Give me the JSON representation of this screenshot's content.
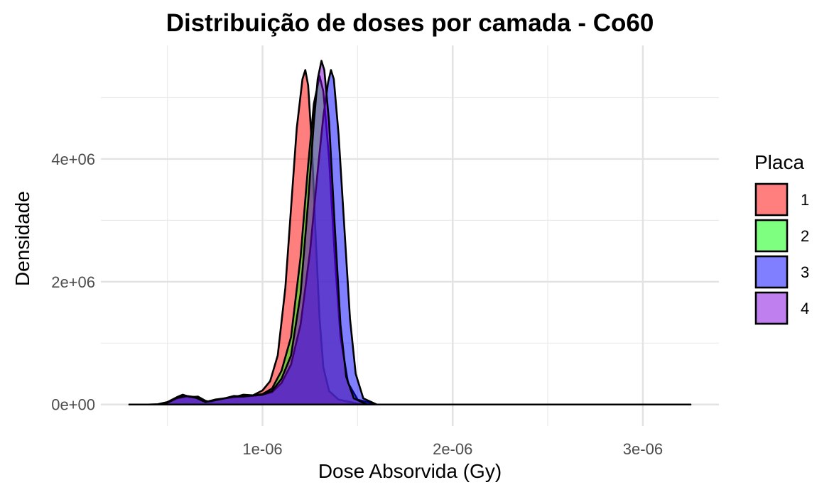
{
  "chart_data": {
    "type": "area",
    "subtype": "density",
    "title": "Distribuição de doses por camada - Co60",
    "xlabel": "Dose Absorvida (Gy)",
    "ylabel": "Densidade",
    "xlim": [
      1.5e-07,
      3.4e-06
    ],
    "ylim": [
      -350000.0,
      5850000.0
    ],
    "x_ticks": [
      {
        "value": 1e-06,
        "label": "1e-06"
      },
      {
        "value": 2e-06,
        "label": "2e-06"
      },
      {
        "value": 3e-06,
        "label": "3e-06"
      }
    ],
    "y_ticks": [
      {
        "value": 0,
        "label": "0e+00"
      },
      {
        "value": 2000000,
        "label": "2e+06"
      },
      {
        "value": 4000000,
        "label": "4e+06"
      }
    ],
    "x_minor_ticks": [
      5e-07,
      1.5e-06,
      2.5e-06
    ],
    "y_minor_ticks": [
      1000000,
      3000000,
      5000000
    ],
    "grid": true,
    "legend": {
      "title": "Placa",
      "position": "right"
    },
    "outline_color": "#000000",
    "fill_opacity": 0.5,
    "series": [
      {
        "name": "1",
        "color": "#FF0000",
        "points": [
          [
            3e-07,
            0
          ],
          [
            4e-07,
            0
          ],
          [
            4.5e-07,
            5000
          ],
          [
            5e-07,
            40000
          ],
          [
            5.5e-07,
            120000
          ],
          [
            5.8e-07,
            160000
          ],
          [
            6.2e-07,
            120000
          ],
          [
            6.6e-07,
            130000
          ],
          [
            7e-07,
            60000
          ],
          [
            7.3e-07,
            40000
          ],
          [
            7.6e-07,
            80000
          ],
          [
            8e-07,
            100000
          ],
          [
            8.5e-07,
            120000
          ],
          [
            9e-07,
            160000
          ],
          [
            9.5e-07,
            150000
          ],
          [
            1e-06,
            230000
          ],
          [
            1.04e-06,
            380000
          ],
          [
            1.08e-06,
            800000
          ],
          [
            1.12e-06,
            1900000
          ],
          [
            1.15e-06,
            3200000
          ],
          [
            1.18e-06,
            4500000
          ],
          [
            1.21e-06,
            5300000
          ],
          [
            1.225e-06,
            5450000
          ],
          [
            1.24e-06,
            5200000
          ],
          [
            1.26e-06,
            4200000
          ],
          [
            1.28e-06,
            2700000
          ],
          [
            1.3e-06,
            1400000
          ],
          [
            1.32e-06,
            600000
          ],
          [
            1.35e-06,
            220000
          ],
          [
            1.4e-06,
            80000
          ],
          [
            1.5e-06,
            15000
          ],
          [
            1.6e-06,
            0
          ],
          [
            2e-06,
            0
          ],
          [
            3.25e-06,
            0
          ]
        ]
      },
      {
        "name": "2",
        "color": "#00FF00",
        "points": [
          [
            3e-07,
            0
          ],
          [
            4.5e-07,
            0
          ],
          [
            5e-07,
            30000
          ],
          [
            5.5e-07,
            110000
          ],
          [
            6e-07,
            140000
          ],
          [
            6.5e-07,
            120000
          ],
          [
            7e-07,
            40000
          ],
          [
            7.5e-07,
            80000
          ],
          [
            8e-07,
            100000
          ],
          [
            8.5e-07,
            140000
          ],
          [
            9e-07,
            130000
          ],
          [
            9.5e-07,
            150000
          ],
          [
            1e-06,
            170000
          ],
          [
            1.05e-06,
            260000
          ],
          [
            1.1e-06,
            550000
          ],
          [
            1.15e-06,
            1100000
          ],
          [
            1.2e-06,
            2400000
          ],
          [
            1.24e-06,
            3900000
          ],
          [
            1.27e-06,
            4900000
          ],
          [
            1.3e-06,
            5350000
          ],
          [
            1.32e-06,
            5100000
          ],
          [
            1.35e-06,
            4000000
          ],
          [
            1.38e-06,
            2400000
          ],
          [
            1.41e-06,
            1100000
          ],
          [
            1.45e-06,
            350000
          ],
          [
            1.5e-06,
            80000
          ],
          [
            1.6e-06,
            0
          ],
          [
            2e-06,
            0
          ],
          [
            3.25e-06,
            0
          ]
        ]
      },
      {
        "name": "3",
        "color": "#0000FF",
        "points": [
          [
            3e-07,
            0
          ],
          [
            4.5e-07,
            0
          ],
          [
            5e-07,
            30000
          ],
          [
            5.5e-07,
            100000
          ],
          [
            6e-07,
            130000
          ],
          [
            6.5e-07,
            110000
          ],
          [
            7e-07,
            40000
          ],
          [
            7.5e-07,
            70000
          ],
          [
            8e-07,
            100000
          ],
          [
            8.5e-07,
            120000
          ],
          [
            9e-07,
            130000
          ],
          [
            9.5e-07,
            140000
          ],
          [
            1e-06,
            160000
          ],
          [
            1.05e-06,
            200000
          ],
          [
            1.1e-06,
            350000
          ],
          [
            1.15e-06,
            650000
          ],
          [
            1.2e-06,
            1300000
          ],
          [
            1.25e-06,
            2500000
          ],
          [
            1.29e-06,
            3800000
          ],
          [
            1.32e-06,
            4700000
          ],
          [
            1.345e-06,
            5250000
          ],
          [
            1.36e-06,
            5450000
          ],
          [
            1.375e-06,
            5300000
          ],
          [
            1.4e-06,
            4400000
          ],
          [
            1.43e-06,
            2900000
          ],
          [
            1.46e-06,
            1400000
          ],
          [
            1.49e-06,
            500000
          ],
          [
            1.53e-06,
            100000
          ],
          [
            1.6e-06,
            0
          ],
          [
            2e-06,
            0
          ],
          [
            3.25e-06,
            0
          ]
        ]
      },
      {
        "name": "4",
        "color": "#8000E0",
        "points": [
          [
            3e-07,
            0
          ],
          [
            4.5e-07,
            0
          ],
          [
            5e-07,
            30000
          ],
          [
            5.5e-07,
            110000
          ],
          [
            6e-07,
            140000
          ],
          [
            6.5e-07,
            110000
          ],
          [
            7e-07,
            40000
          ],
          [
            7.5e-07,
            70000
          ],
          [
            8e-07,
            100000
          ],
          [
            8.5e-07,
            130000
          ],
          [
            9e-07,
            130000
          ],
          [
            9.5e-07,
            150000
          ],
          [
            1e-06,
            160000
          ],
          [
            1.05e-06,
            220000
          ],
          [
            1.1e-06,
            420000
          ],
          [
            1.15e-06,
            800000
          ],
          [
            1.2e-06,
            1800000
          ],
          [
            1.24e-06,
            3300000
          ],
          [
            1.27e-06,
            4600000
          ],
          [
            1.29e-06,
            5300000
          ],
          [
            1.31e-06,
            5600000
          ],
          [
            1.325e-06,
            5450000
          ],
          [
            1.35e-06,
            4600000
          ],
          [
            1.38e-06,
            2900000
          ],
          [
            1.41e-06,
            1300000
          ],
          [
            1.44e-06,
            450000
          ],
          [
            1.48e-06,
            100000
          ],
          [
            1.55e-06,
            0
          ],
          [
            2e-06,
            0
          ],
          [
            3.25e-06,
            0
          ]
        ]
      }
    ]
  }
}
